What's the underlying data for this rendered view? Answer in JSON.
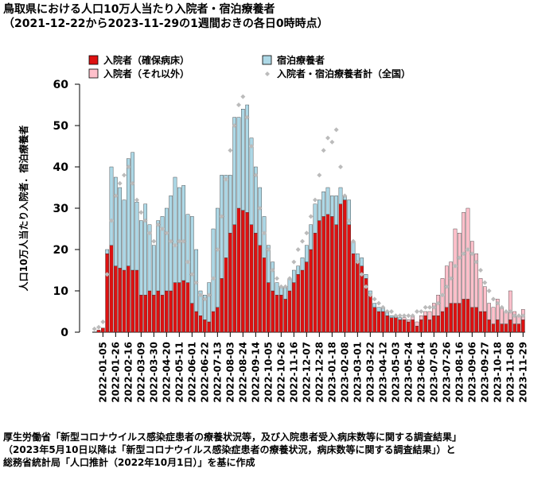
{
  "chart_data": {
    "type": "bar",
    "stacked": true,
    "title": "鳥取県における人口10万人当たり入院者・宿泊療養者",
    "subtitle": "（2021-12-22から2023-11-29の1週間おきの各日0時時点）",
    "ylabel": "人口10万人当たり入院者．宿泊療養者",
    "ylim": [
      0,
      60
    ],
    "yticks": [
      0,
      10,
      20,
      30,
      40,
      50,
      60
    ],
    "categories": [
      null,
      null,
      "2022-01-05",
      null,
      null,
      "2022-01-26",
      null,
      null,
      "2022-02-16",
      null,
      null,
      "2022-03-09",
      null,
      null,
      "2022-03-30",
      null,
      null,
      "2022-04-20",
      null,
      null,
      "2022-05-11",
      null,
      null,
      "2022-06-01",
      null,
      null,
      "2022-06-22",
      null,
      null,
      "2022-07-13",
      null,
      null,
      "2022-08-03",
      null,
      null,
      "2022-08-24",
      null,
      null,
      "2022-09-14",
      null,
      null,
      "2022-10-05",
      null,
      null,
      "2022-10-26",
      null,
      null,
      "2022-11-16",
      null,
      null,
      "2022-12-07",
      null,
      null,
      "2022-12-28",
      null,
      null,
      "2023-01-18",
      null,
      null,
      "2023-02-08",
      null,
      null,
      "2023-03-01",
      null,
      null,
      "2023-03-22",
      null,
      null,
      "2023-04-12",
      null,
      null,
      "2023-05-03",
      null,
      null,
      "2023-05-24",
      null,
      null,
      "2023-06-14",
      null,
      null,
      "2023-07-05",
      null,
      null,
      "2023-07-26",
      null,
      null,
      "2023-08-16",
      null,
      null,
      "2023-09-06",
      null,
      null,
      "2023-09-27",
      null,
      null,
      "2023-10-18",
      null,
      null,
      "2023-11-08",
      null,
      null,
      "2023-11-29"
    ],
    "series": [
      {
        "name": "入院者（確保病床）",
        "color": "#dd1111",
        "type": "bar",
        "values": [
          0,
          0.5,
          1,
          19,
          21,
          16,
          15.5,
          15,
          16,
          15,
          15,
          9,
          9,
          10,
          9,
          10,
          9,
          10,
          10,
          12,
          12,
          12.5,
          12,
          7,
          5,
          4,
          3,
          2.5,
          5,
          6,
          13,
          18,
          24,
          26,
          30,
          29.5,
          29,
          26,
          24,
          21,
          18,
          12,
          10,
          9,
          9,
          8,
          10,
          12,
          14,
          15,
          17,
          20,
          24,
          27,
          28,
          28.5,
          28,
          26,
          31,
          32,
          26,
          19,
          17,
          16,
          13,
          9,
          6,
          5,
          5,
          4,
          3.5,
          3.5,
          3,
          3,
          2.5,
          3,
          1.5,
          3,
          4,
          3,
          4,
          4,
          5,
          6,
          7,
          7,
          7,
          8,
          8,
          6,
          6,
          5,
          5,
          3,
          2,
          3,
          2,
          2,
          3,
          2,
          2,
          3
        ]
      },
      {
        "name": "宿泊療養者",
        "color": "#add8e6",
        "type": "bar",
        "values": [
          0,
          0,
          0,
          1,
          19,
          21.5,
          19.5,
          17,
          26,
          28.5,
          16.5,
          18,
          22,
          16,
          12,
          17,
          19,
          20,
          23,
          25.5,
          23,
          23,
          16.5,
          21,
          15,
          6,
          6,
          9.5,
          20,
          24,
          25,
          20,
          14,
          26,
          22,
          24.5,
          26,
          21,
          16,
          14,
          10,
          9,
          7,
          3,
          2,
          3,
          3,
          3,
          2,
          3,
          4,
          6,
          7,
          5,
          6,
          6.5,
          5,
          7,
          4,
          1,
          6,
          3,
          2,
          2,
          1,
          1,
          1,
          1,
          1,
          1,
          0.5,
          0.5,
          0.5,
          0,
          0,
          0,
          0,
          0,
          0,
          0,
          0,
          0,
          0,
          0,
          0,
          0,
          0,
          0,
          0,
          0,
          0,
          0,
          0,
          0,
          0,
          0,
          0,
          0,
          0,
          0,
          0,
          0
        ]
      },
      {
        "name": "入院者（それ以外）",
        "color": "#ffc0cb",
        "type": "bar",
        "values": [
          0,
          0,
          0,
          0,
          0,
          0,
          0,
          0,
          0,
          0,
          0,
          0,
          0,
          0,
          0,
          0,
          0,
          0,
          0,
          0,
          0,
          0,
          0,
          0,
          0,
          0,
          0,
          0,
          0,
          0,
          0,
          0,
          0,
          0,
          0,
          0,
          0,
          0,
          0,
          0,
          0,
          0,
          0,
          0,
          0,
          0,
          0,
          0,
          0,
          0,
          0,
          0,
          0,
          0,
          0,
          0,
          0,
          0,
          0,
          0,
          0,
          0,
          0,
          0,
          0,
          0,
          0,
          0,
          0,
          0,
          0,
          0,
          0,
          0.5,
          0.5,
          1,
          1,
          1,
          1,
          2,
          3,
          5,
          8,
          10,
          10,
          18,
          17,
          21,
          22,
          16,
          13,
          8,
          6,
          4,
          4,
          5,
          4,
          3,
          7,
          3,
          2,
          2.5
        ]
      },
      {
        "name": "入院者・宿泊療養者計（全国）",
        "color": "#bbbbbb",
        "type": "scatter",
        "values": [
          0.8,
          1.2,
          2.5,
          14,
          27,
          33,
          36,
          38,
          40,
          36,
          32,
          29,
          27,
          24,
          22,
          26,
          25,
          24,
          22,
          21,
          22,
          22,
          17,
          14,
          12,
          9,
          8,
          9,
          13,
          20,
          28,
          37,
          44,
          50,
          55,
          57,
          52,
          45,
          38,
          30,
          24,
          20,
          15,
          13,
          11,
          11,
          13,
          17,
          20,
          22,
          24,
          28,
          32,
          38,
          44,
          47,
          46,
          49,
          40,
          33,
          27,
          22,
          17,
          14,
          11,
          9,
          8,
          7,
          6,
          5,
          5,
          4,
          4,
          4,
          4,
          4,
          5,
          5,
          6,
          6,
          6,
          7,
          9,
          11,
          13,
          16,
          18,
          19,
          20,
          19,
          17,
          15,
          12,
          10,
          8,
          7,
          6,
          5,
          5,
          4,
          4,
          4
        ]
      }
    ],
    "source": [
      "厚生労働省「新型コロナウイルス感染症患者の療養状況等，及び入院患者受入病床数等に関する調査結果」",
      "（2023年5月10日以降は「新型コロナウイルス感染症患者の療養状況，病床数等に関する調査結果」）と",
      "総務省統計局「人口推計（2022年10月1日）」を基に作成"
    ]
  }
}
